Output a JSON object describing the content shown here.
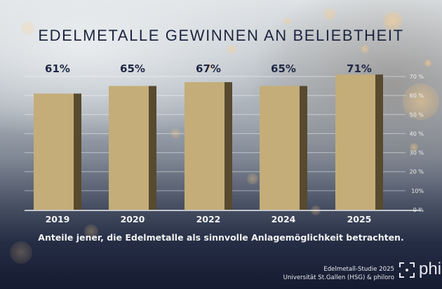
{
  "title": "EDELMETALLE GEWINNEN AN BELIEBTHEIT",
  "caption": "Anteile jener, die Edelmetalle als sinnvolle Anlagemöglichkeit betrachten.",
  "footer": {
    "line1": "Edelmetall-Studie 2025",
    "line2": "Universität St.Gallen (HSG) & philoro"
  },
  "brand": {
    "name": "phil",
    "icon": "philoro-bracket-logo-icon"
  },
  "colors": {
    "bar_front": "#c4ad79",
    "bar_side": "#574a2e",
    "title": "#1c2440",
    "value_label": "#1f2744",
    "axis_text": "#eeeeee"
  },
  "chart_data": {
    "type": "bar",
    "title": "EDELMETALLE GEWINNEN AN BELIEBTHEIT",
    "categories": [
      "2019",
      "2020",
      "2022",
      "2024",
      "2025"
    ],
    "values": [
      61,
      65,
      67,
      65,
      71
    ],
    "value_labels": [
      "61%",
      "65%",
      "67%",
      "65%",
      "71%"
    ],
    "xlabel": "",
    "ylabel": "",
    "ylim": [
      0,
      70
    ],
    "yticks": [
      0,
      10,
      20,
      30,
      40,
      50,
      60,
      70
    ],
    "ytick_labels": [
      "0 %",
      "10%",
      "20 %",
      "30 %",
      "40 %",
      "50 %",
      "60 %",
      "70 %"
    ],
    "y_axis_side": "right",
    "grid": true,
    "legend": "none"
  }
}
